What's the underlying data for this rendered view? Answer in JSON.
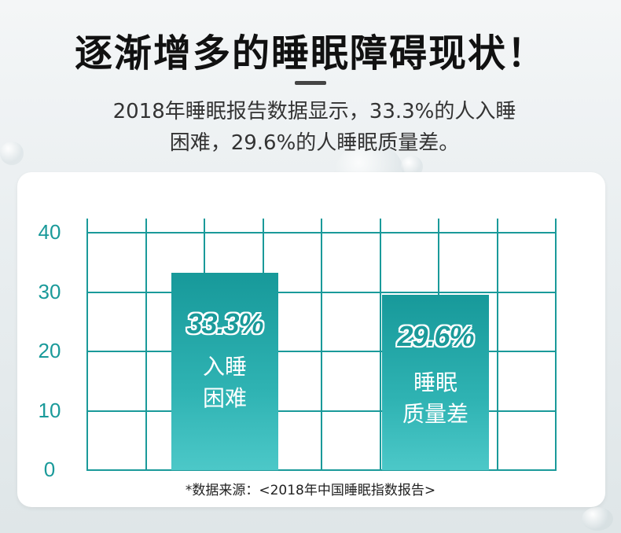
{
  "title": "逐渐增多的睡眠障碍现状！",
  "subtitle": {
    "line1": "2018年睡眠报告数据显示，33.3%的人入睡",
    "line2": "困难，29.6%的人睡眠质量差。"
  },
  "chart_data": {
    "type": "bar",
    "categories": [
      "入睡困难",
      "睡眠质量差"
    ],
    "values": [
      33.3,
      29.6
    ],
    "data_labels": [
      "33.3%",
      "29.6%"
    ],
    "category_lines": [
      [
        "入睡",
        "困难"
      ],
      [
        "睡眠",
        "质量差"
      ]
    ],
    "ylim": [
      0,
      40
    ],
    "yticks": [
      "40",
      "30",
      "20",
      "10",
      "0"
    ],
    "grid": true,
    "colors": {
      "bar": "#2fb3b3",
      "grid": "#1a9a9a"
    }
  },
  "source": "*数据来源：<2018年中国睡眠指数报告>"
}
